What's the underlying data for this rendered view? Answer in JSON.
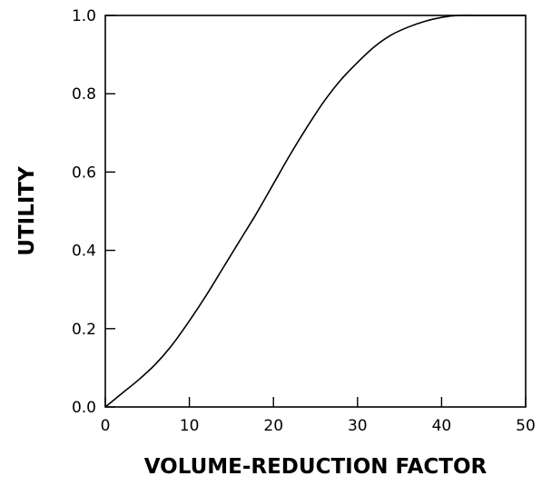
{
  "chart_data": {
    "type": "line",
    "title": "",
    "xlabel": "VOLUME-REDUCTION FACTOR",
    "ylabel": "UTILITY",
    "xlim": [
      0,
      50
    ],
    "ylim": [
      0,
      1
    ],
    "xticks": [
      0,
      10,
      20,
      30,
      40,
      50
    ],
    "yticks": [
      0.0,
      0.2,
      0.4,
      0.6,
      0.8,
      1.0
    ],
    "xtick_labels": [
      "0",
      "10",
      "20",
      "30",
      "40",
      "50"
    ],
    "ytick_labels": [
      "0.0",
      "0.2",
      "0.4",
      "0.6",
      "0.8",
      "1.0"
    ],
    "grid": false,
    "legend": "none",
    "line_color": "#000000",
    "series": [
      {
        "x": [
          0,
          2,
          4,
          6,
          8,
          10,
          12,
          14,
          16,
          18,
          20,
          22,
          24,
          26,
          28,
          30,
          32,
          34,
          36,
          38,
          40,
          42,
          44,
          46,
          48,
          50
        ],
        "values": [
          0.0,
          0.035,
          0.07,
          0.11,
          0.16,
          0.22,
          0.285,
          0.355,
          0.425,
          0.495,
          0.57,
          0.645,
          0.715,
          0.78,
          0.835,
          0.88,
          0.92,
          0.95,
          0.97,
          0.985,
          0.995,
          1.0,
          1.0,
          1.0,
          1.0,
          1.0
        ]
      }
    ]
  }
}
